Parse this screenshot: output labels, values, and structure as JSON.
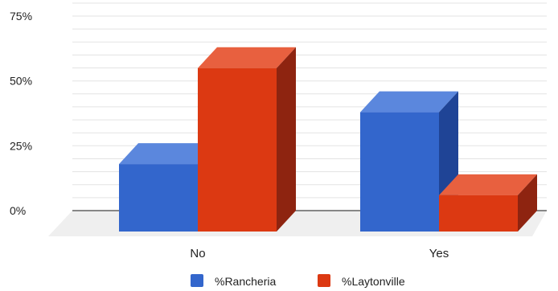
{
  "chart_data": {
    "type": "bar",
    "style": "3d",
    "categories": [
      "No",
      "Yes"
    ],
    "series": [
      {
        "name": "%Rancheria",
        "values": [
          26,
          46
        ]
      },
      {
        "name": "%Laytonville",
        "values": [
          63,
          14
        ]
      }
    ],
    "ylim": [
      0,
      75
    ],
    "yticks": [
      "0%",
      "25%",
      "50%",
      "75%"
    ],
    "ytick_values": [
      0,
      25,
      50,
      75
    ],
    "grid": true,
    "legend_position": "bottom"
  },
  "colors": {
    "rancheria_front": "#3366cc",
    "rancheria_top": "#5b87dd",
    "rancheria_side": "#1f4496",
    "laytonville_front": "#dc3912",
    "laytonville_top": "#e8603f",
    "laytonville_side": "#8e2410",
    "grid": "#e3e3e3",
    "floor": "#efefef"
  }
}
